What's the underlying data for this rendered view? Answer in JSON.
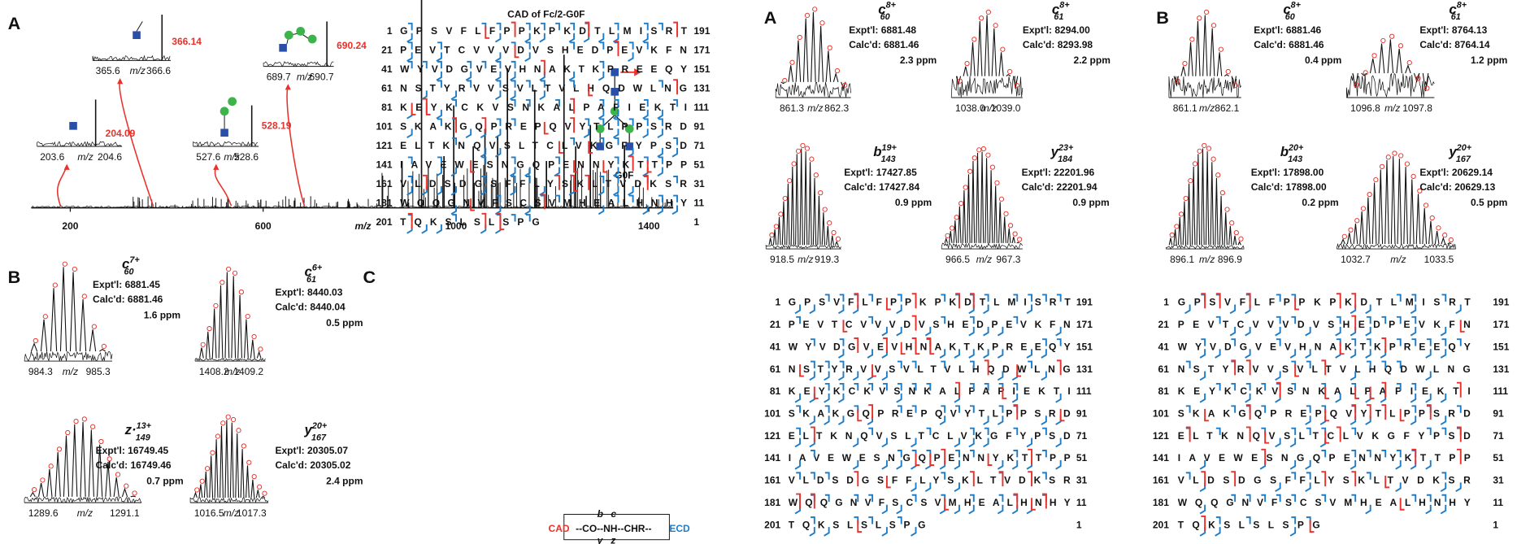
{
  "panel_a": {
    "label": "A",
    "title": "CAD of Fc/2-G0F",
    "glycan": "G0F",
    "x_label": "m/z",
    "x_ticks": [
      "200",
      "600",
      "1000",
      "1400"
    ],
    "insets": [
      {
        "peak": "366.14",
        "ticks": [
          "365.6",
          "366.6"
        ]
      },
      {
        "peak": "690.24",
        "ticks": [
          "689.7",
          "690.7"
        ]
      },
      {
        "peak": "204.09",
        "ticks": [
          "203.6",
          "204.6"
        ]
      },
      {
        "peak": "528.19",
        "ticks": [
          "527.6",
          "528.6"
        ]
      }
    ]
  },
  "panel_b": {
    "label": "B",
    "x_label": "m/z",
    "spectra": [
      {
        "ion": "c",
        "position": "60",
        "charge": "7+",
        "expt": "Expt'l: 6881.45",
        "calc": "Calc'd: 6881.46",
        "error": "1.6 ppm",
        "ticks": [
          "984.3",
          "985.3"
        ]
      },
      {
        "ion": "c",
        "position": "61",
        "charge": "6+",
        "expt": "Expt'l: 8440.03",
        "calc": "Calc'd: 8440.04",
        "error": "0.5 ppm",
        "ticks": [
          "1408.2",
          "1409.2"
        ]
      },
      {
        "ion": "z·",
        "position": "149",
        "charge": "13+",
        "expt": "Expt'l: 16749.45",
        "calc": "Calc'd: 16749.46",
        "error": "0.7 ppm",
        "ticks": [
          "1289.6",
          "1291.1"
        ]
      },
      {
        "ion": "y",
        "position": "167",
        "charge": "20+",
        "expt": "Expt'l: 20305.07",
        "calc": "Calc'd: 20305.02",
        "error": "2.4 ppm",
        "ticks": [
          "1016.5",
          "1017.3"
        ]
      }
    ]
  },
  "panel_c": {
    "label": "C",
    "legend": {
      "cad": "CAD",
      "chain": "--CO--NH--CHR--",
      "ecd": "ECD",
      "b": "b",
      "c": "c",
      "y": "y",
      "z": "z"
    }
  },
  "panel_right_a": {
    "label": "A",
    "x_label": "m/z",
    "spectra": [
      {
        "ion": "c",
        "position": "60",
        "charge": "8+",
        "expt": "Expt'l: 6881.48",
        "calc": "Calc'd: 6881.46",
        "error": "2.3 ppm",
        "ticks": [
          "861.3",
          "862.3"
        ]
      },
      {
        "ion": "c",
        "position": "61",
        "charge": "8+",
        "expt": "Expt'l: 8294.00",
        "calc": "Calc'd: 8293.98",
        "error": "2.2 ppm",
        "ticks": [
          "1038.0",
          "1039.0"
        ]
      },
      {
        "ion": "b",
        "position": "143",
        "charge": "19+",
        "expt": "Expt'l: 17427.85",
        "calc": "Calc'd: 17427.84",
        "error": "0.9 ppm",
        "ticks": [
          "918.5",
          "919.3"
        ]
      },
      {
        "ion": "y",
        "position": "184",
        "charge": "23+",
        "expt": "Expt'l: 22201.96",
        "calc": "Calc'd: 22201.94",
        "error": "0.9 ppm",
        "ticks": [
          "966.5",
          "967.3"
        ]
      }
    ]
  },
  "panel_right_b": {
    "label": "B",
    "x_label": "m/z",
    "spectra": [
      {
        "ion": "c",
        "position": "60",
        "charge": "8+",
        "expt": "Expt'l: 6881.46",
        "calc": "Calc'd: 6881.46",
        "error": "0.4 ppm",
        "ticks": [
          "861.1",
          "862.1"
        ]
      },
      {
        "ion": "c",
        "position": "61",
        "charge": "8+",
        "expt": "Expt'l: 8764.13",
        "calc": "Calc'd: 8764.14",
        "error": "1.2 ppm",
        "ticks": [
          "1096.8",
          "1097.8"
        ]
      },
      {
        "ion": "b",
        "position": "143",
        "charge": "20+",
        "expt": "Expt'l: 17898.00",
        "calc": "Calc'd: 17898.00",
        "error": "0.2 ppm",
        "ticks": [
          "896.1",
          "896.9"
        ]
      },
      {
        "ion": "y",
        "position": "167",
        "charge": "20+",
        "expt": "Expt'l: 20629.14",
        "calc": "Calc'd: 20629.13",
        "error": "0.5 ppm",
        "ticks": [
          "1032.7",
          "1033.5"
        ]
      }
    ]
  },
  "sequence": [
    {
      "start": "1",
      "residues": "GPSVFLFPPKPKDTLMISRT",
      "end": "191"
    },
    {
      "start": "21",
      "residues": "PEVTCVVVDVSHEDPEVKFN",
      "end": "171"
    },
    {
      "start": "41",
      "residues": "WYVDGVEVHNAKTKPREEQY",
      "end": "151"
    },
    {
      "start": "61",
      "residues": "NSTYRVVSVLTVLHQDWLNG",
      "end": "131"
    },
    {
      "start": "81",
      "residues": "KEYKCKVSNKALPAPIEKTI",
      "end": "111"
    },
    {
      "start": "101",
      "residues": "SKAKGQPREPQVYTLPPSRD",
      "end": "91"
    },
    {
      "start": "121",
      "residues": "ELTKNQVSLTCLVKGFYPSD",
      "end": "71"
    },
    {
      "start": "141",
      "residues": "IAVEWESNGQPENNYKTTPP",
      "end": "51"
    },
    {
      "start": "161",
      "residues": "VLDSDGSFFLYSKLTVDKSR",
      "end": "31"
    },
    {
      "start": "181",
      "residues": "WQQGNVFSCSVMHEALHNHY",
      "end": "11"
    },
    {
      "start": "201",
      "residues": "TQKSLSLSPG",
      "end": "1"
    }
  ]
}
